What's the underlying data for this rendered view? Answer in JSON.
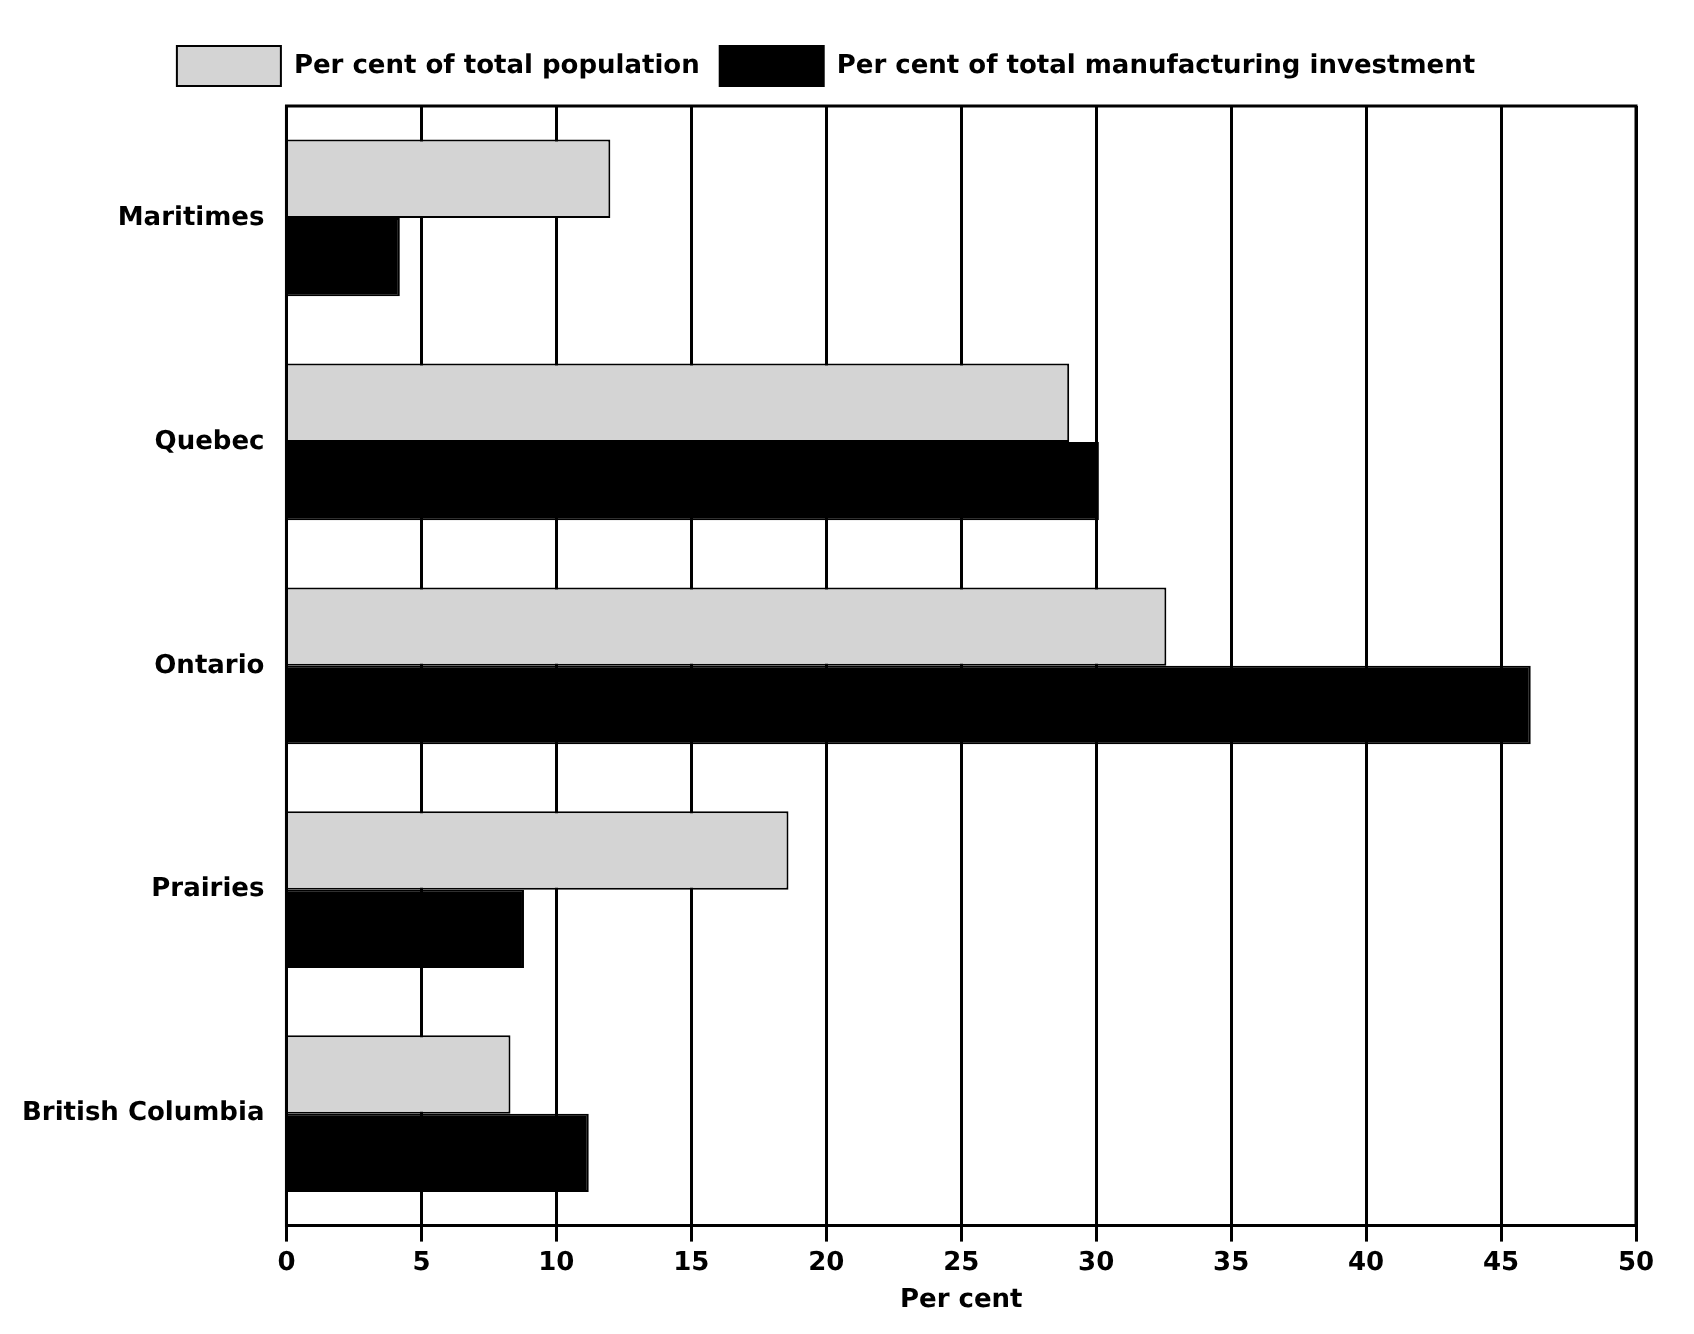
{
  "chart_data": {
    "type": "bar",
    "orientation": "horizontal",
    "xlabel": "Per cent",
    "categories": [
      "Maritimes",
      "Quebec",
      "Ontario",
      "Prairies",
      "British Columbia"
    ],
    "series": [
      {
        "name": "Per cent of total population",
        "color": "#d4d4d4",
        "values": [
          12.0,
          29.0,
          32.6,
          18.6,
          8.3
        ]
      },
      {
        "name": "Per cent of total manufacturing investment",
        "color": "#000000",
        "values": [
          4.2,
          30.1,
          46.1,
          8.8,
          11.2
        ]
      }
    ],
    "xlim": [
      0,
      50
    ],
    "xticks": [
      0,
      5,
      10,
      15,
      20,
      25,
      30,
      35,
      40,
      45,
      50
    ],
    "grid": "x",
    "legend": "top"
  }
}
